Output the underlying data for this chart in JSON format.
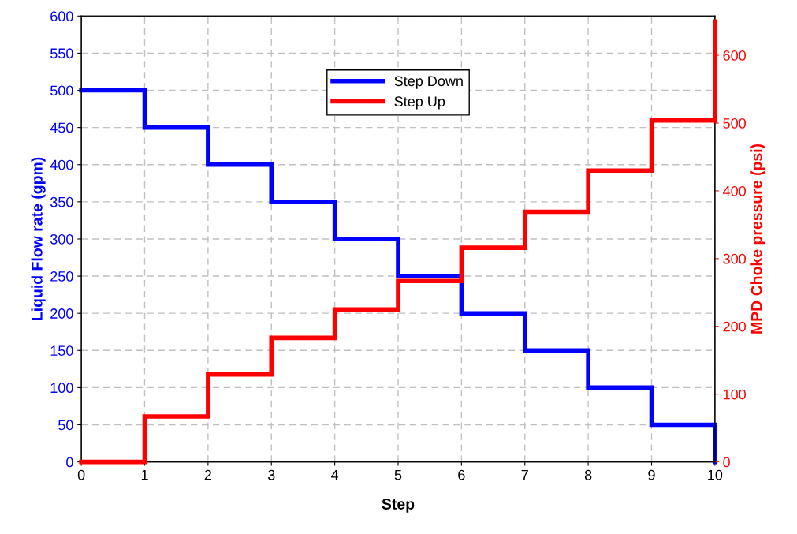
{
  "chart_data": {
    "type": "step",
    "xlabel": "Step",
    "ylabel": "Liquid Flow rate (gpm)",
    "y2label": "MPD Choke pressure (psi)",
    "x": [
      0,
      1,
      2,
      3,
      4,
      5,
      6,
      7,
      8,
      9,
      10
    ],
    "series": [
      {
        "name": "Step Down",
        "color": "#0000ff",
        "values": [
          500,
          450,
          400,
          350,
          300,
          250,
          200,
          150,
          100,
          50,
          0
        ]
      },
      {
        "name": "Step Up",
        "color": "#ff0000",
        "axis": "y2",
        "values": [
          0,
          67,
          129,
          183,
          225,
          267,
          316,
          369,
          430,
          504,
          650
        ]
      }
    ],
    "xlim": [
      0,
      10
    ],
    "xticks": [
      0,
      1,
      2,
      3,
      4,
      5,
      6,
      7,
      8,
      9,
      10
    ],
    "ylim": [
      0,
      600
    ],
    "yticks": [
      0,
      50,
      100,
      150,
      200,
      250,
      300,
      350,
      400,
      450,
      500,
      550,
      600
    ],
    "y2lim": [
      0,
      658
    ],
    "y2ticks": [
      0,
      100,
      200,
      300,
      400,
      500,
      600
    ],
    "grid": true,
    "legend": "top",
    "line_style": "solid",
    "marker": "none"
  }
}
